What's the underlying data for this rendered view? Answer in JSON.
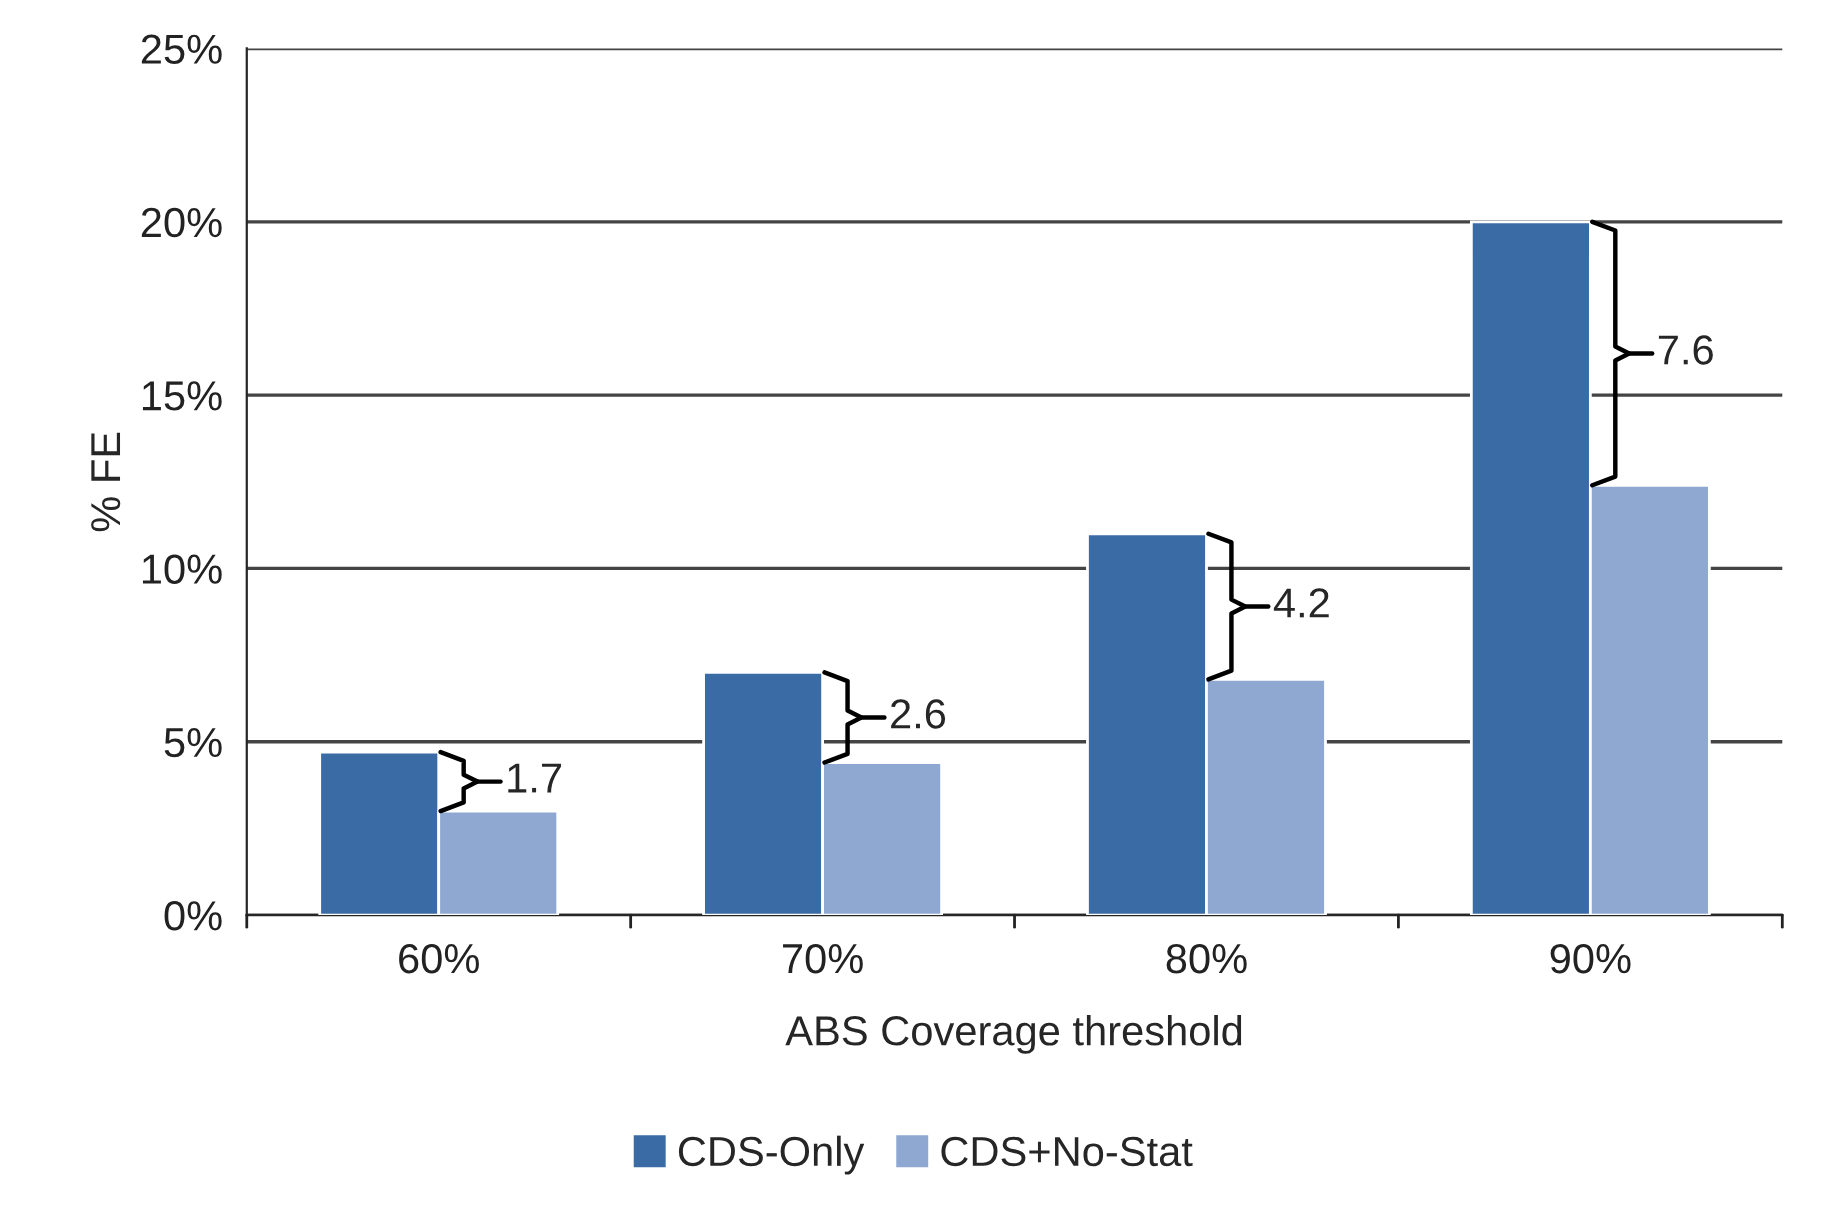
{
  "chart_data": {
    "type": "bar",
    "xlabel": "ABS Coverage threshold",
    "ylabel": "% FE",
    "categories": [
      "60%",
      "70%",
      "80%",
      "90%"
    ],
    "series": [
      {
        "name": "CDS-Only",
        "color": "#3b6ba5",
        "values": [
          4.7,
          7.0,
          11.0,
          20.0
        ]
      },
      {
        "name": "CDS+No-Stat",
        "color": "#8ea8d2",
        "values": [
          3.0,
          4.4,
          6.8,
          12.4
        ]
      }
    ],
    "ylim": [
      0,
      25
    ],
    "yticks": [
      {
        "value": 0,
        "label": "0%"
      },
      {
        "value": 5,
        "label": "5%"
      },
      {
        "value": 10,
        "label": "10%"
      },
      {
        "value": 15,
        "label": "15%"
      },
      {
        "value": 20,
        "label": "20%"
      },
      {
        "value": 25,
        "label": "25%"
      }
    ],
    "annotations": [
      {
        "text": "1.7",
        "x": "60%",
        "y": 3.85
      },
      {
        "text": "2.6",
        "x": "70%",
        "y": 5.7
      },
      {
        "text": "4.2",
        "x": "80%",
        "y": 8.9
      },
      {
        "text": "7.6",
        "x": "90%",
        "y": 16.2
      }
    ],
    "grid": "y",
    "legend": "bottom"
  }
}
